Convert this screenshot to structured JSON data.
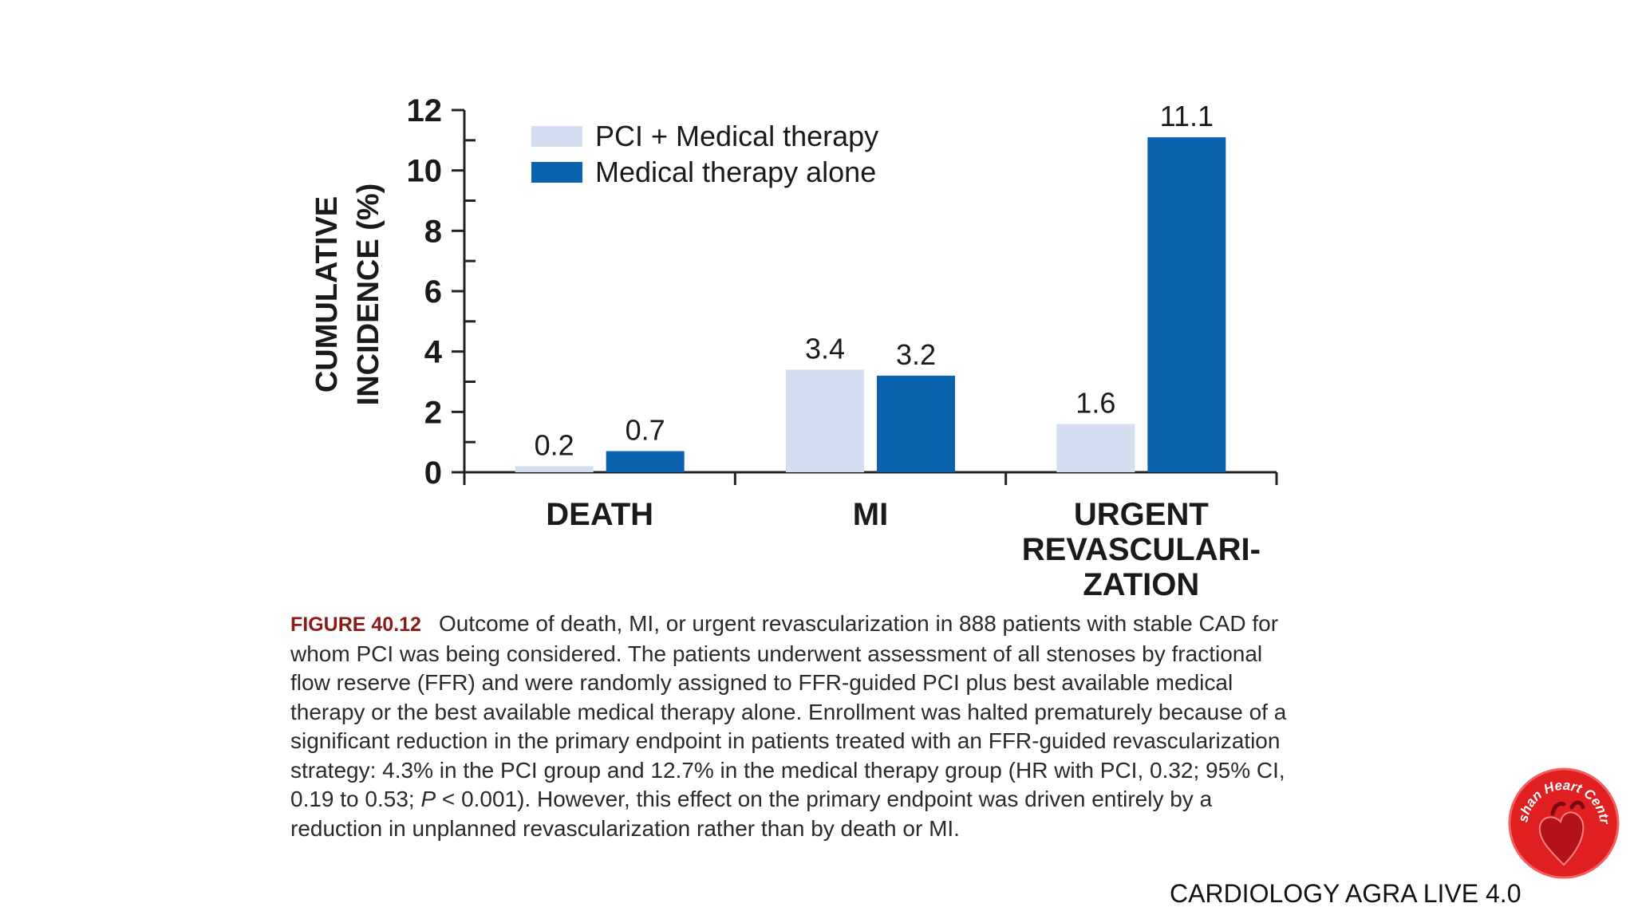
{
  "chart_data": {
    "type": "bar",
    "categories": [
      "DEATH",
      "MI",
      "URGENT REVASCULARI- ZATION"
    ],
    "category_lines": [
      [
        "DEATH"
      ],
      [
        "MI"
      ],
      [
        "URGENT",
        "REVASCULARI-",
        "ZATION"
      ]
    ],
    "series": [
      {
        "name": "PCI + Medical therapy",
        "values": [
          0.2,
          3.4,
          1.6
        ],
        "labels": [
          "0.2",
          "3.4",
          "1.6"
        ],
        "color": "#d3dff0"
      },
      {
        "name": "Medical therapy alone",
        "values": [
          0.7,
          3.2,
          11.1
        ],
        "labels": [
          "0.7",
          "3.2",
          "11.1"
        ],
        "color": "#0d62b0"
      }
    ],
    "ylabel_lines": [
      "CUMULATIVE",
      "INCIDENCE (%)"
    ],
    "ylim": [
      0,
      12
    ],
    "yticks": [
      0,
      2,
      4,
      6,
      8,
      10,
      12
    ],
    "legend_position": "top-left",
    "grid": false
  },
  "caption": {
    "figure_number": "FIGURE 40.12",
    "text_parts": [
      {
        "text": "Outcome of death, MI, or urgent revascularization in 888 patients with stable CAD for whom PCI was being considered. The patients underwent assessment of all stenoses by fractional flow reserve (FFR) and were randomly assigned to FFR-guided PCI plus best available medical therapy or the best available medical therapy alone. Enrollment was halted prematurely because of a significant reduction in the primary endpoint in patients treated with an FFR-guided revascularization strategy: 4.3% in the PCI group and 12.7% in the medical therapy group (HR with PCI, 0.32; 95% CI, 0.19 to 0.53; ",
        "italic": false
      },
      {
        "text": "P",
        "italic": true
      },
      {
        "text": " < 0.001). However, this effect on the primary endpoint was driven entirely by a reduction in unplanned revascularization rather than by death or MI.",
        "italic": false
      }
    ]
  },
  "logo": {
    "text": "Eshan Heart Centre",
    "color": "#e02020"
  },
  "footer": {
    "text": "CARDIOLOGY AGRA LIVE 4.0"
  }
}
